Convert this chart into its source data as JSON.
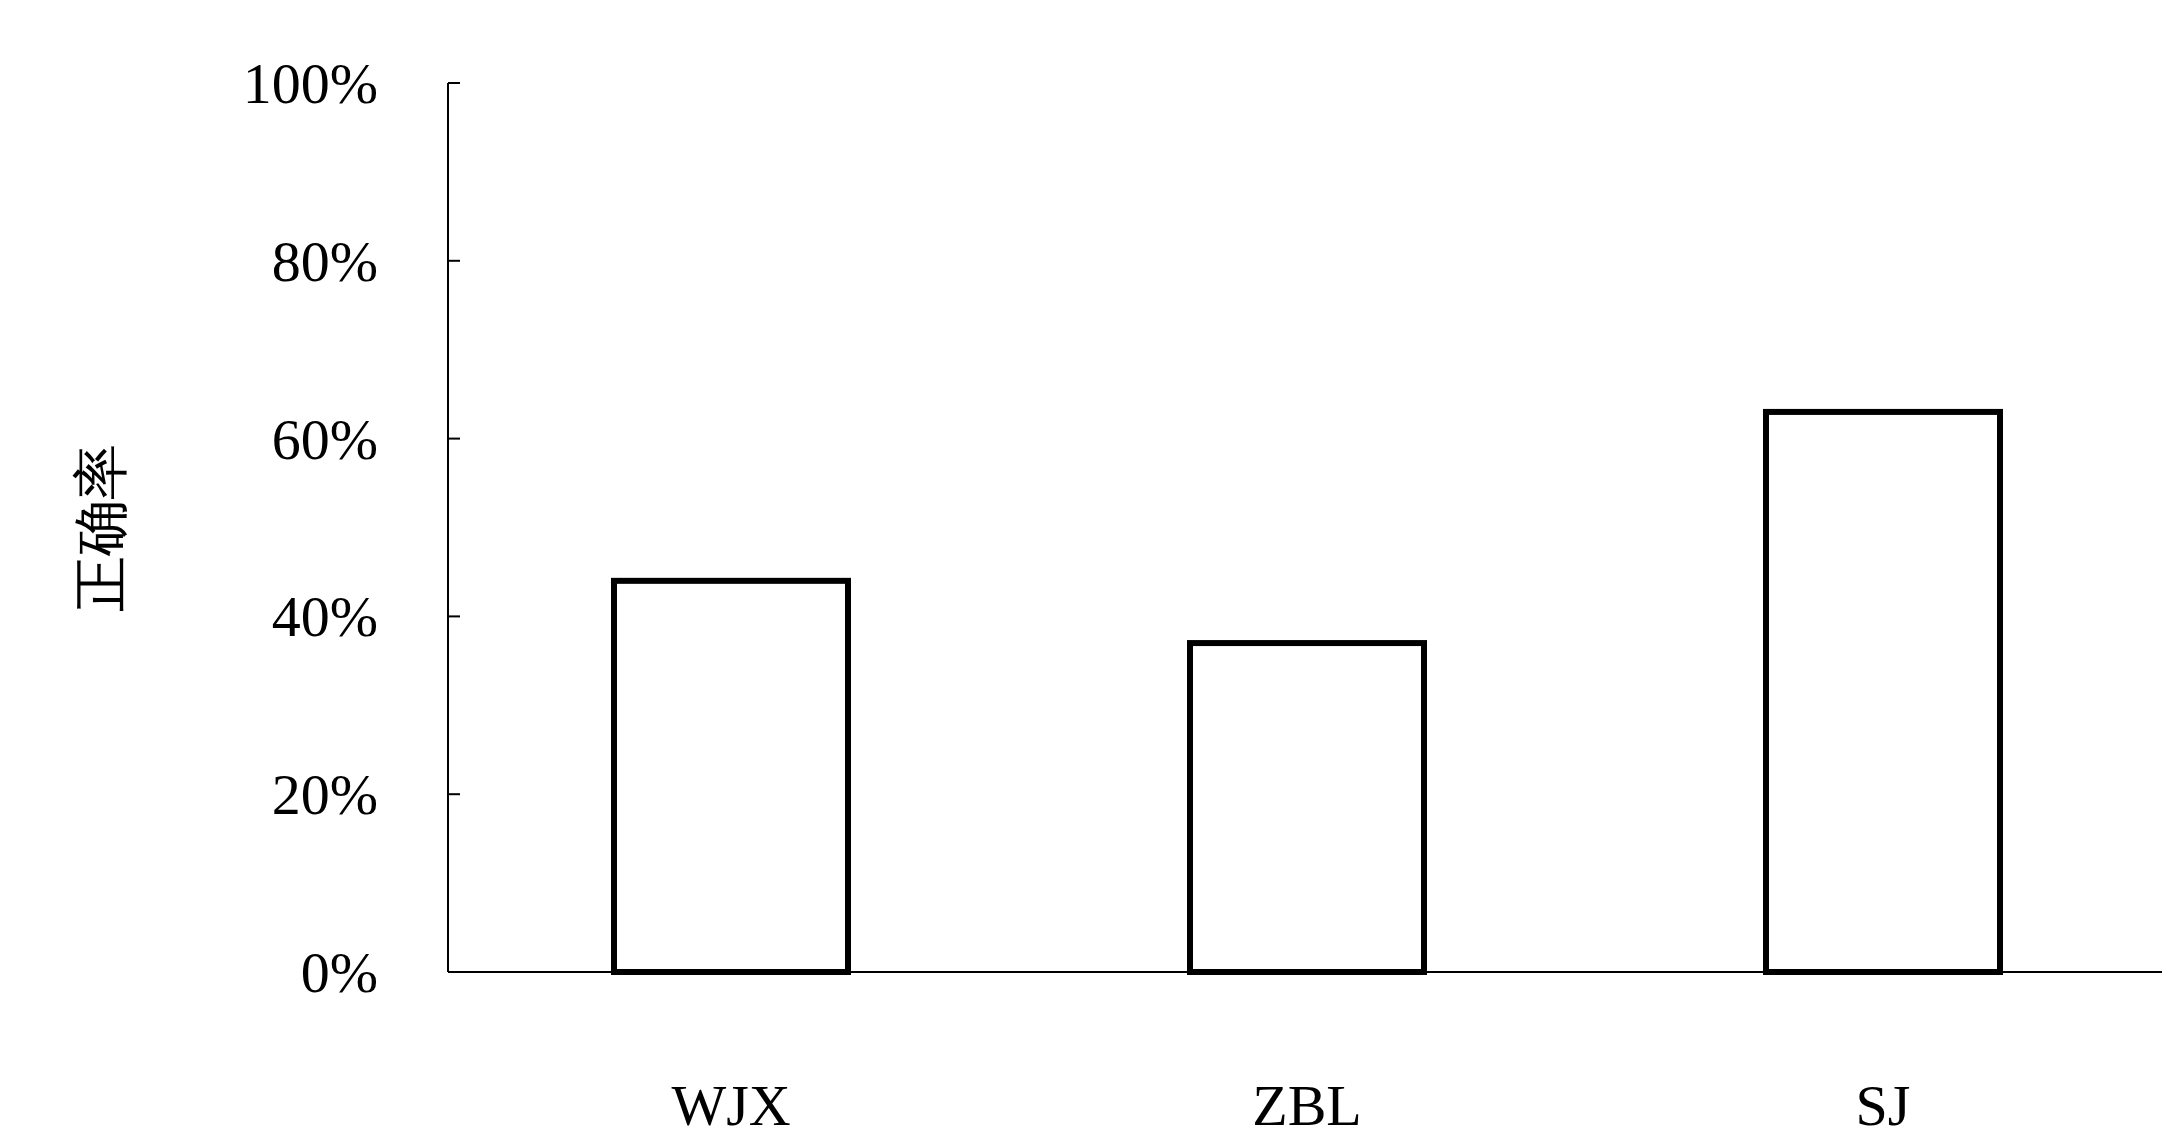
{
  "chart_data": {
    "type": "bar",
    "ylabel": "正确率",
    "categories": [
      "WJX",
      "ZBL",
      "SJ"
    ],
    "values": [
      44,
      37,
      63
    ],
    "color": "#ffffff",
    "ylim": [
      0,
      100
    ],
    "yticks": [
      {
        "value": 0,
        "label": "0%"
      },
      {
        "value": 20,
        "label": "20%"
      },
      {
        "value": 40,
        "label": "40%"
      },
      {
        "value": 60,
        "label": "60%"
      },
      {
        "value": 80,
        "label": "80%"
      },
      {
        "value": 100,
        "label": "100%"
      }
    ],
    "grid": false
  }
}
